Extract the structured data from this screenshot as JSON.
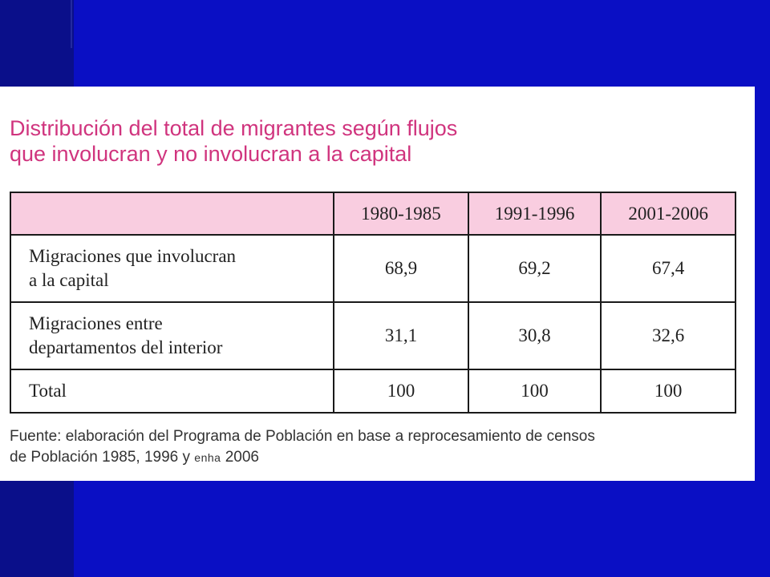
{
  "slide": {
    "title_line1": "Distribución del total de migrantes según flujos",
    "title_line2": "que involucran y no involucran a la capital",
    "table": {
      "headers": [
        "",
        "1980-1985",
        "1991-1996",
        "2001-2006"
      ],
      "rows": [
        {
          "label_line1": "Migraciones que involucran",
          "label_line2": "a la capital",
          "values": [
            "68,9",
            "69,2",
            "67,4"
          ]
        },
        {
          "label_line1": "Migraciones entre",
          "label_line2": "departamentos del interior",
          "values": [
            "31,1",
            "30,8",
            "32,6"
          ]
        },
        {
          "label_line1": "Total",
          "values": [
            "100",
            "100",
            "100"
          ]
        }
      ]
    },
    "source_line1": "Fuente: elaboración del Programa de Población en base a reprocesamiento de censos",
    "source_line2_before": "de Población 1985, 1996 y ",
    "source_line2_enha": "enha",
    "source_line2_after": " 2006"
  },
  "colors": {
    "background": "#0a0fc4",
    "left_stripe": "#0a0f8a",
    "title": "#d0347e",
    "header_fill": "#f9cde0"
  }
}
